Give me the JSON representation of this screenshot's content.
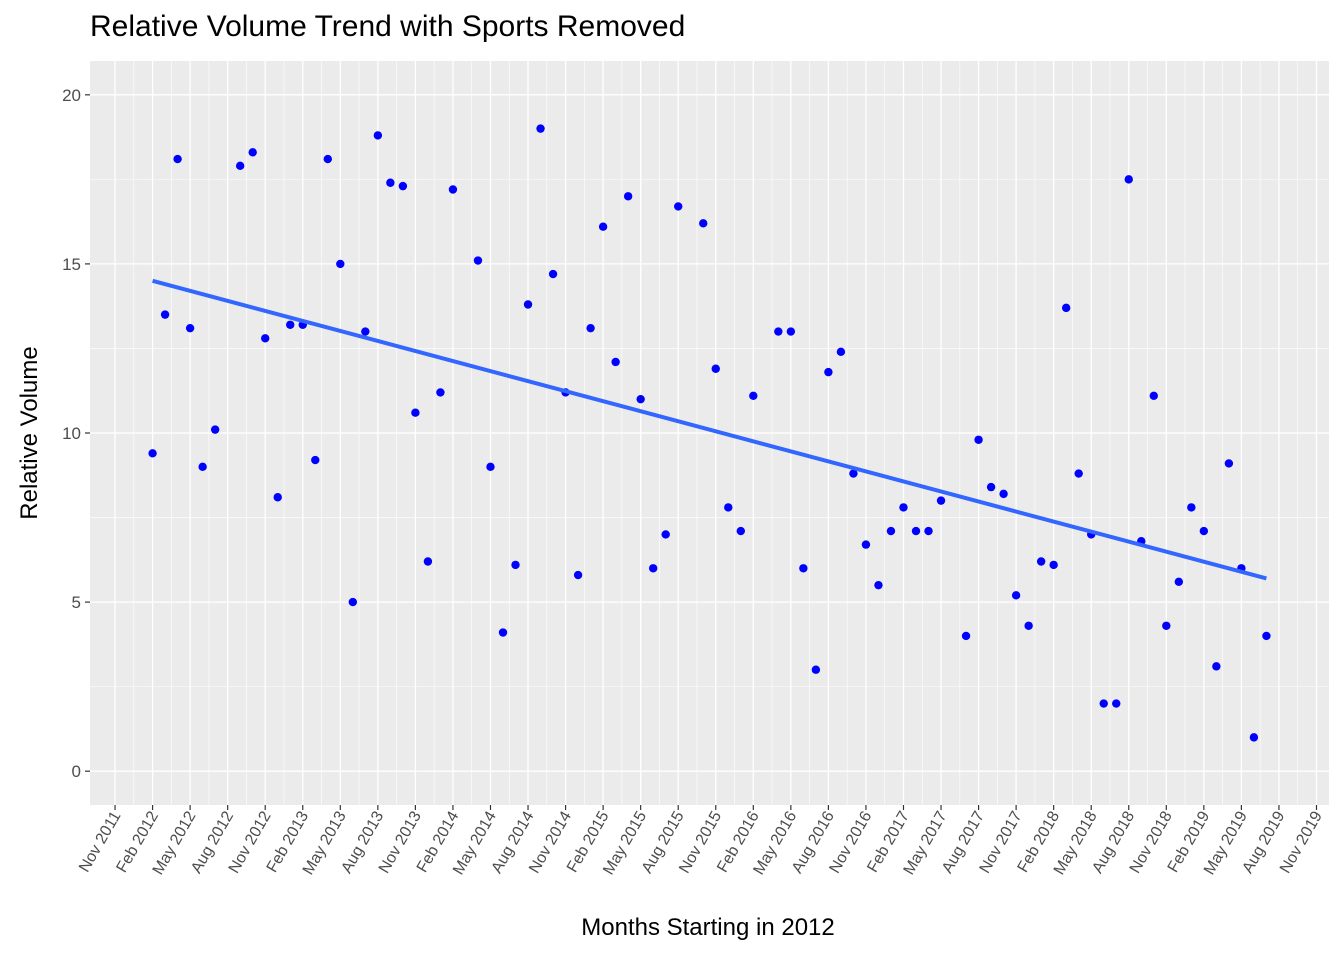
{
  "chart_data": {
    "type": "scatter",
    "title": "Relative Volume Trend with Sports Removed",
    "xlabel": "Months Starting in 2012",
    "ylabel": "Relative Volume",
    "x_axis_type": "date",
    "xlim": [
      "2011-09",
      "2019-12"
    ],
    "ylim": [
      -1,
      21
    ],
    "y_ticks": [
      0,
      5,
      10,
      15,
      20
    ],
    "x_ticks": [
      "2011-11",
      "2012-02",
      "2012-05",
      "2012-08",
      "2012-11",
      "2013-02",
      "2013-05",
      "2013-08",
      "2013-11",
      "2014-02",
      "2014-05",
      "2014-08",
      "2014-11",
      "2015-02",
      "2015-05",
      "2015-08",
      "2015-11",
      "2016-02",
      "2016-05",
      "2016-08",
      "2016-11",
      "2017-02",
      "2017-05",
      "2017-08",
      "2017-11",
      "2018-02",
      "2018-05",
      "2018-08",
      "2018-11",
      "2019-02",
      "2019-05",
      "2019-08",
      "2019-11"
    ],
    "x_tick_labels": [
      "Nov 2011",
      "Feb 2012",
      "May 2012",
      "Aug 2012",
      "Nov 2012",
      "Feb 2013",
      "May 2013",
      "Aug 2013",
      "Nov 2013",
      "Feb 2014",
      "May 2014",
      "Aug 2014",
      "Nov 2014",
      "Feb 2015",
      "May 2015",
      "Aug 2015",
      "Nov 2015",
      "Feb 2016",
      "May 2016",
      "Aug 2016",
      "Nov 2016",
      "Feb 2017",
      "May 2017",
      "Aug 2017",
      "Nov 2017",
      "Feb 2018",
      "May 2018",
      "Aug 2018",
      "Nov 2018",
      "Feb 2019",
      "May 2019",
      "Aug 2019",
      "Nov 2019"
    ],
    "grid": true,
    "legend": "none",
    "series": [
      {
        "type": "scatter",
        "color": "#0000ff",
        "points": [
          {
            "x": "2012-02",
            "y": 9.4
          },
          {
            "x": "2012-03",
            "y": 13.5
          },
          {
            "x": "2012-04",
            "y": 18.1
          },
          {
            "x": "2012-05",
            "y": 13.1
          },
          {
            "x": "2012-06",
            "y": 9.0
          },
          {
            "x": "2012-07",
            "y": 10.1
          },
          {
            "x": "2012-09",
            "y": 17.9
          },
          {
            "x": "2012-10",
            "y": 18.3
          },
          {
            "x": "2012-11",
            "y": 12.8
          },
          {
            "x": "2012-12",
            "y": 8.1
          },
          {
            "x": "2013-01",
            "y": 13.2
          },
          {
            "x": "2013-02",
            "y": 13.2
          },
          {
            "x": "2013-03",
            "y": 9.2
          },
          {
            "x": "2013-04",
            "y": 18.1
          },
          {
            "x": "2013-05",
            "y": 15.0
          },
          {
            "x": "2013-06",
            "y": 5.0
          },
          {
            "x": "2013-07",
            "y": 13.0
          },
          {
            "x": "2013-08",
            "y": 18.8
          },
          {
            "x": "2013-09",
            "y": 17.4
          },
          {
            "x": "2013-10",
            "y": 17.3
          },
          {
            "x": "2013-11",
            "y": 10.6
          },
          {
            "x": "2013-12",
            "y": 6.2
          },
          {
            "x": "2014-01",
            "y": 11.2
          },
          {
            "x": "2014-02",
            "y": 17.2
          },
          {
            "x": "2014-04",
            "y": 15.1
          },
          {
            "x": "2014-05",
            "y": 9.0
          },
          {
            "x": "2014-06",
            "y": 4.1
          },
          {
            "x": "2014-07",
            "y": 6.1
          },
          {
            "x": "2014-08",
            "y": 13.8
          },
          {
            "x": "2014-09",
            "y": 19.0
          },
          {
            "x": "2014-10",
            "y": 14.7
          },
          {
            "x": "2014-11",
            "y": 11.2
          },
          {
            "x": "2014-12",
            "y": 5.8
          },
          {
            "x": "2015-01",
            "y": 13.1
          },
          {
            "x": "2015-02",
            "y": 16.1
          },
          {
            "x": "2015-03",
            "y": 12.1
          },
          {
            "x": "2015-04",
            "y": 17.0
          },
          {
            "x": "2015-05",
            "y": 11.0
          },
          {
            "x": "2015-06",
            "y": 6.0
          },
          {
            "x": "2015-07",
            "y": 7.0
          },
          {
            "x": "2015-08",
            "y": 16.7
          },
          {
            "x": "2015-10",
            "y": 16.2
          },
          {
            "x": "2015-11",
            "y": 11.9
          },
          {
            "x": "2015-12",
            "y": 7.8
          },
          {
            "x": "2016-01",
            "y": 7.1
          },
          {
            "x": "2016-02",
            "y": 11.1
          },
          {
            "x": "2016-04",
            "y": 13.0
          },
          {
            "x": "2016-05",
            "y": 13.0
          },
          {
            "x": "2016-06",
            "y": 6.0
          },
          {
            "x": "2016-07",
            "y": 3.0
          },
          {
            "x": "2016-08",
            "y": 11.8
          },
          {
            "x": "2016-09",
            "y": 12.4
          },
          {
            "x": "2016-10",
            "y": 8.8
          },
          {
            "x": "2016-11",
            "y": 6.7
          },
          {
            "x": "2016-12",
            "y": 5.5
          },
          {
            "x": "2017-01",
            "y": 7.1
          },
          {
            "x": "2017-02",
            "y": 7.8
          },
          {
            "x": "2017-03",
            "y": 7.1
          },
          {
            "x": "2017-04",
            "y": 7.1
          },
          {
            "x": "2017-05",
            "y": 8.0
          },
          {
            "x": "2017-07",
            "y": 4.0
          },
          {
            "x": "2017-08",
            "y": 9.8
          },
          {
            "x": "2017-09",
            "y": 8.4
          },
          {
            "x": "2017-10",
            "y": 8.2
          },
          {
            "x": "2017-11",
            "y": 5.2
          },
          {
            "x": "2017-12",
            "y": 4.3
          },
          {
            "x": "2018-01",
            "y": 6.2
          },
          {
            "x": "2018-02",
            "y": 6.1
          },
          {
            "x": "2018-03",
            "y": 13.7
          },
          {
            "x": "2018-04",
            "y": 8.8
          },
          {
            "x": "2018-05",
            "y": 7.0
          },
          {
            "x": "2018-06",
            "y": 2.0
          },
          {
            "x": "2018-07",
            "y": 2.0
          },
          {
            "x": "2018-08",
            "y": 17.5
          },
          {
            "x": "2018-09",
            "y": 6.8
          },
          {
            "x": "2018-10",
            "y": 11.1
          },
          {
            "x": "2018-11",
            "y": 4.3
          },
          {
            "x": "2018-12",
            "y": 5.6
          },
          {
            "x": "2019-01",
            "y": 7.8
          },
          {
            "x": "2019-02",
            "y": 7.1
          },
          {
            "x": "2019-03",
            "y": 3.1
          },
          {
            "x": "2019-04",
            "y": 9.1
          },
          {
            "x": "2019-05",
            "y": 6.0
          },
          {
            "x": "2019-06",
            "y": 1.0
          },
          {
            "x": "2019-07",
            "y": 4.0
          }
        ]
      },
      {
        "type": "line",
        "color": "#3366ff",
        "points": [
          {
            "x": "2012-02",
            "y": 14.5
          },
          {
            "x": "2019-07",
            "y": 5.7
          }
        ]
      }
    ]
  }
}
